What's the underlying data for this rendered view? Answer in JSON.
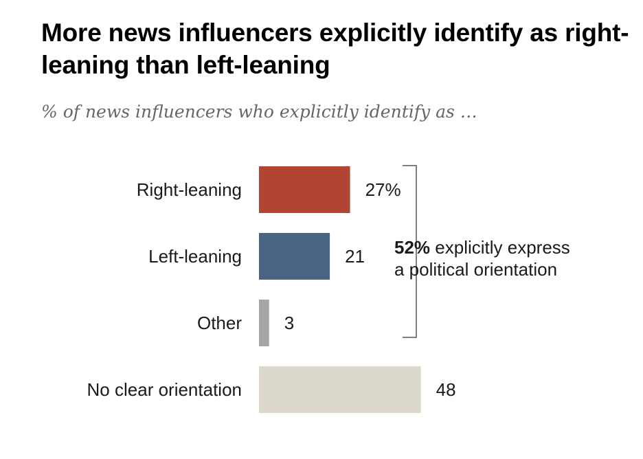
{
  "chart_data": {
    "type": "bar",
    "orientation": "horizontal",
    "title": "More news influencers explicitly identify as right-leaning than left-leaning",
    "subtitle": "% of news influencers who explicitly identify as …",
    "categories": [
      "Right-leaning",
      "Left-leaning",
      "Other",
      "No clear orientation"
    ],
    "values": [
      27,
      21,
      3,
      48
    ],
    "value_labels": [
      "27%",
      "21",
      "3",
      "48"
    ],
    "colors": [
      "#b24434",
      "#4a6583",
      "#a6a6a6",
      "#dcd9cc"
    ],
    "xlim": [
      0,
      100
    ],
    "grid": false,
    "annotation": {
      "bold_part": "52%",
      "rest_line1": " explicitly express",
      "line2": "a political orientation"
    }
  }
}
